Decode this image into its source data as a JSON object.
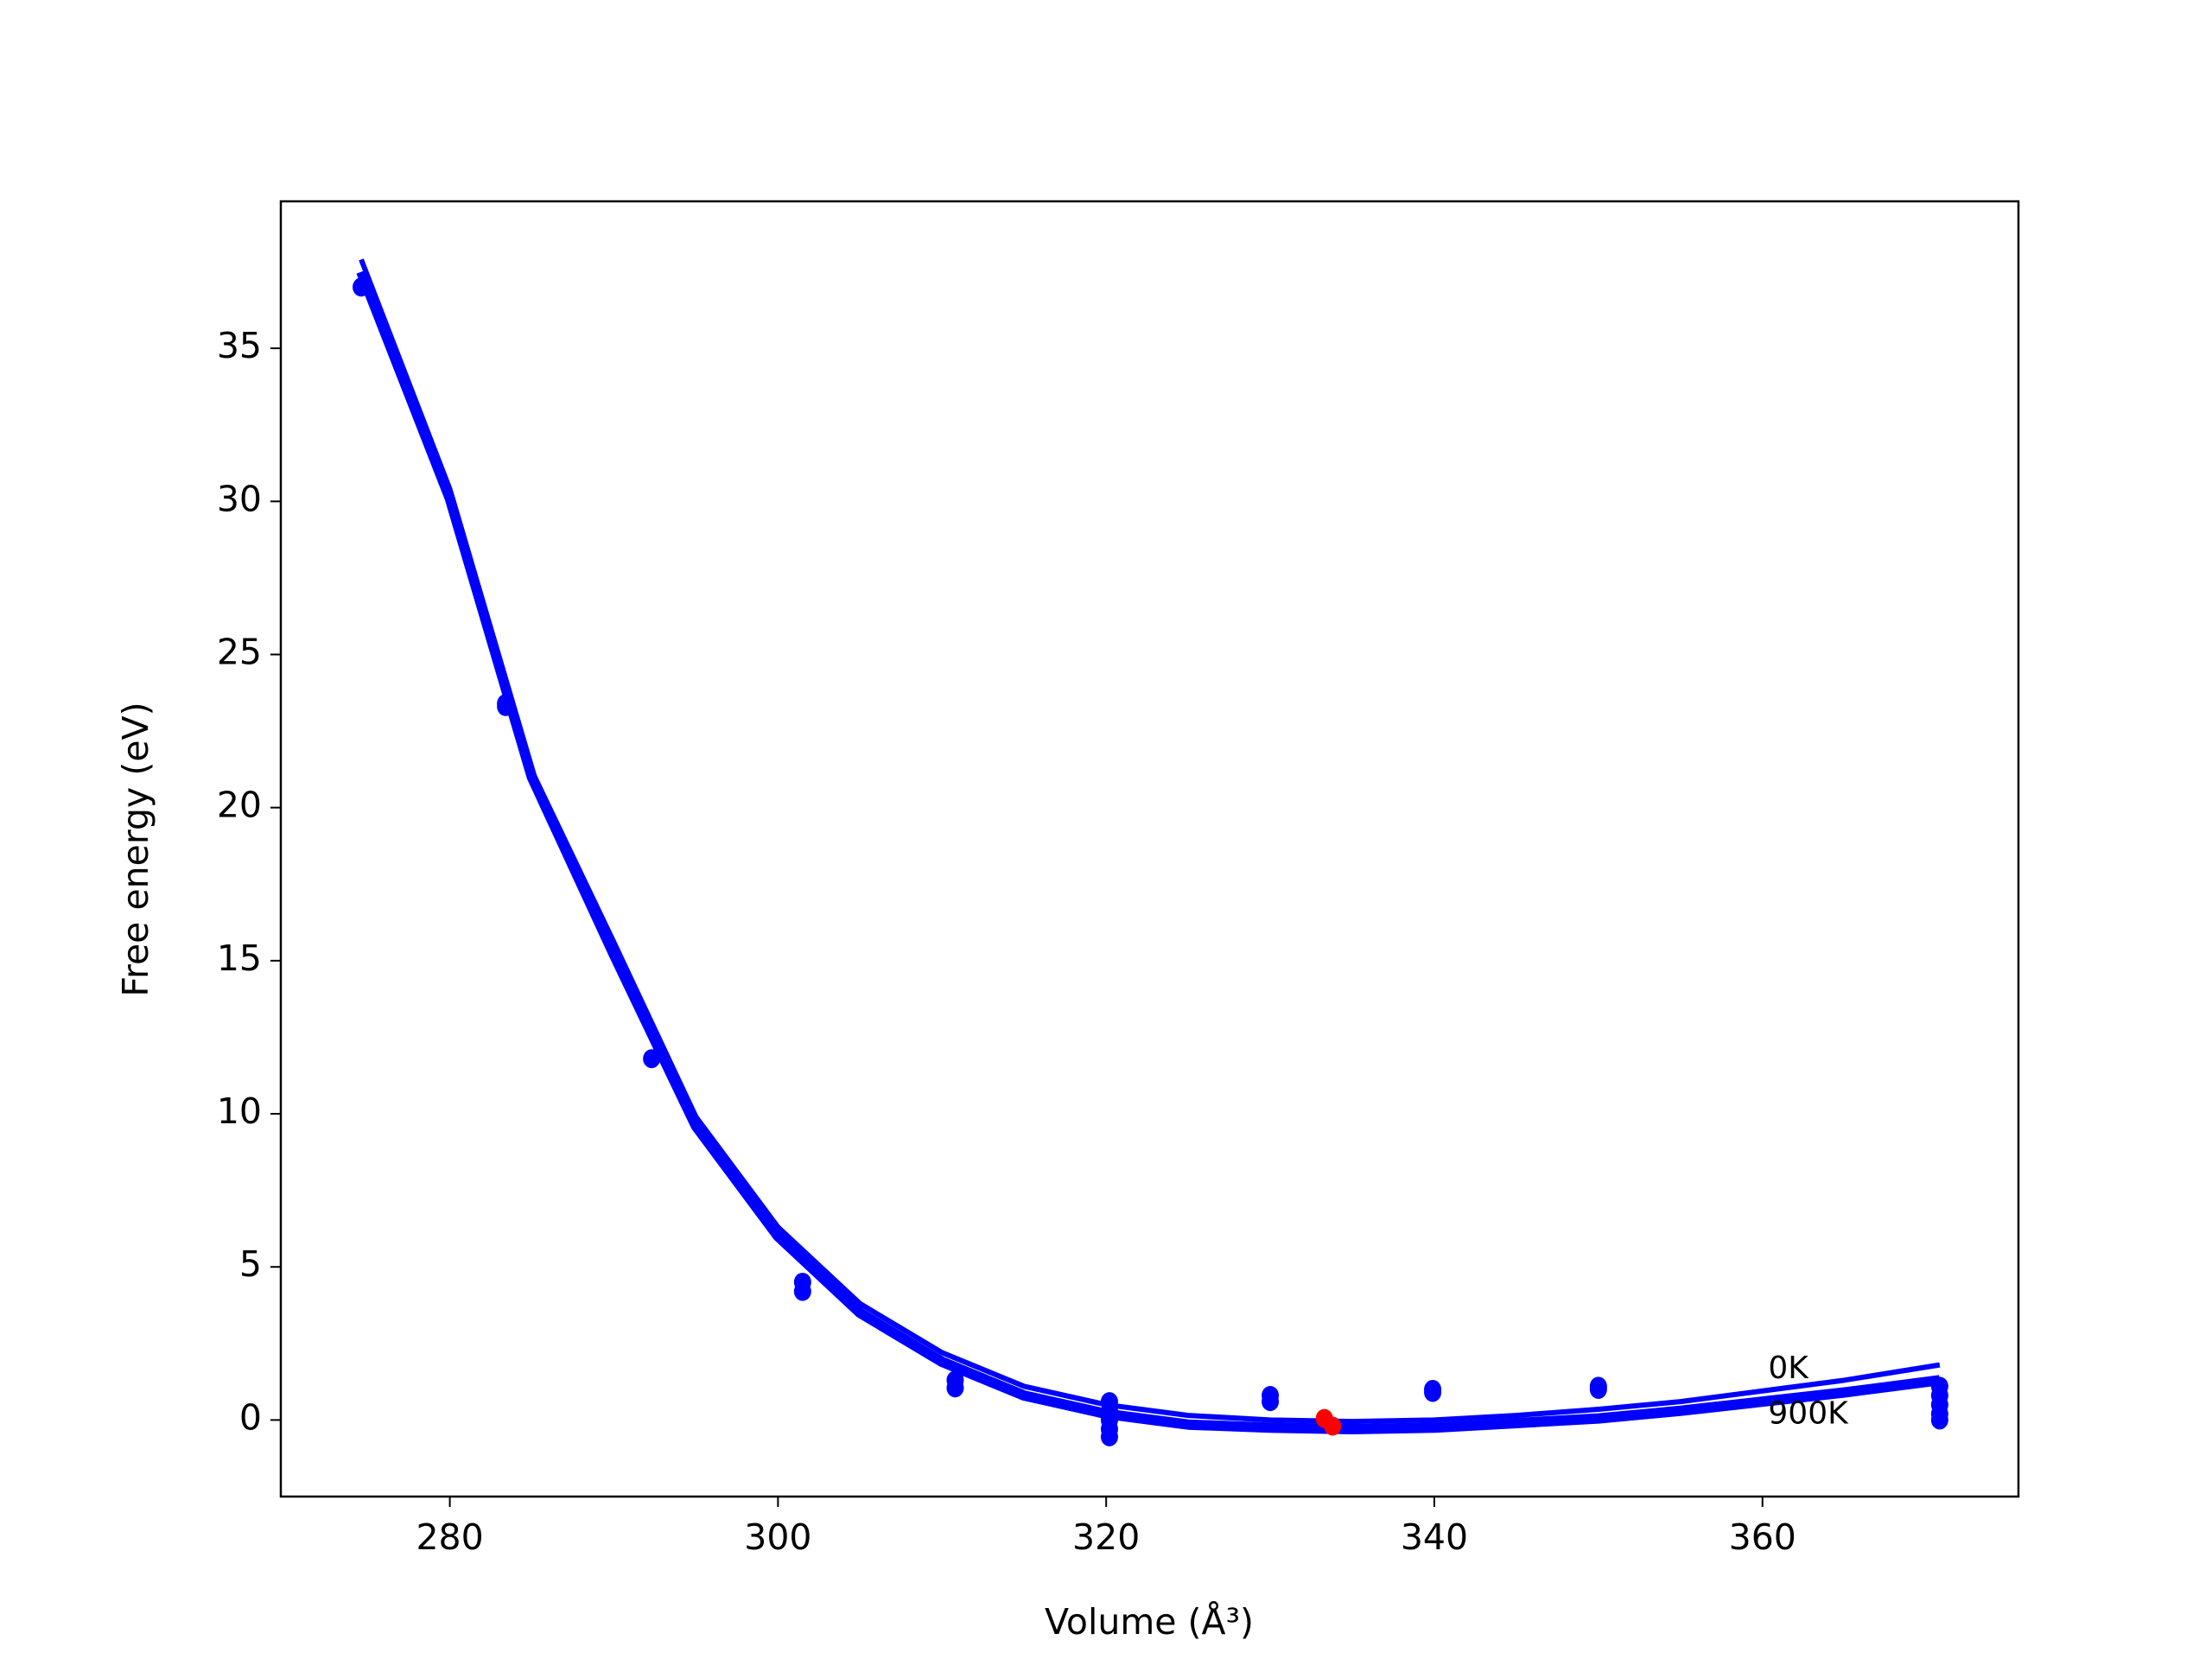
{
  "chart_data": {
    "type": "line",
    "xlabel": "Volume (Å³)",
    "ylabel": "Free energy (eV)",
    "xlim": [
      269.7,
      375.6
    ],
    "ylim": [
      -2.5,
      39.8
    ],
    "xticks": [
      280,
      300,
      320,
      340,
      360
    ],
    "yticks": [
      0,
      5,
      10,
      15,
      20,
      25,
      30,
      35
    ],
    "grid": false,
    "x": [
      274.6,
      280,
      285,
      290,
      295,
      300,
      305,
      310,
      315,
      320,
      325,
      330,
      335,
      340,
      345,
      350,
      355,
      360,
      365,
      370.8
    ],
    "series": [
      {
        "name": "0K",
        "color": "#0000ff",
        "values": [
          37.9,
          30.4,
          21.2,
          15.6,
          9.9,
          6.3,
          3.8,
          2.2,
          1.1,
          0.5,
          0.15,
          0.0,
          -0.05,
          0.0,
          0.15,
          0.35,
          0.6,
          0.95,
          1.3,
          1.8
        ]
      },
      {
        "name": "900K",
        "color": "#0000ff",
        "values": [
          37.5,
          30.1,
          21.0,
          15.2,
          9.6,
          6.0,
          3.5,
          1.9,
          0.8,
          0.2,
          -0.15,
          -0.25,
          -0.3,
          -0.25,
          -0.1,
          0.05,
          0.3,
          0.6,
          0.9,
          1.3
        ]
      }
    ],
    "points": {
      "color": "#0000ff",
      "x": [
        274.6,
        283.4,
        283.4,
        292.3,
        301.5,
        301.5,
        310.8,
        310.8,
        320.2,
        320.2,
        320.2,
        320.2,
        320.2,
        330,
        330,
        339.9,
        339.9,
        350,
        350,
        370.8,
        370.8,
        370.8,
        370.8,
        370.8
      ],
      "values": [
        37.0,
        23.4,
        23.3,
        11.8,
        4.5,
        4.2,
        1.3,
        1.05,
        0.6,
        0.3,
        0.0,
        -0.3,
        -0.55,
        0.8,
        0.6,
        1.0,
        0.9,
        1.1,
        1.0,
        1.1,
        0.8,
        0.5,
        0.2,
        0.0
      ]
    },
    "minima": {
      "color": "#ff0000",
      "x": [
        333.3,
        333.8
      ],
      "values": [
        0.05,
        -0.2
      ]
    }
  }
}
